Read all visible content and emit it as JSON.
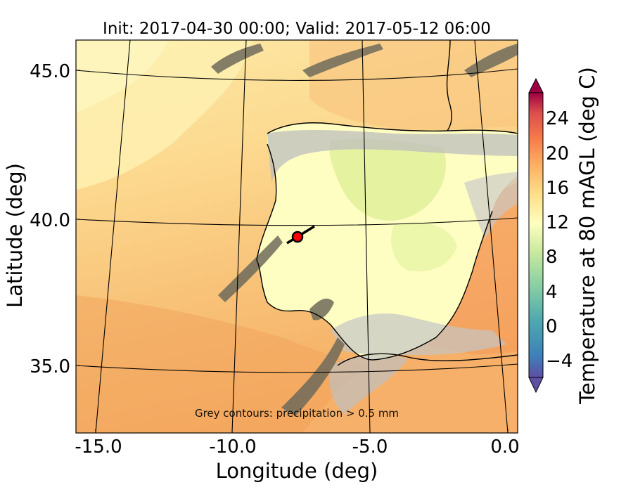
{
  "title": "Init: 2017-04-30 00:00; Valid: 2017-05-12 06:00",
  "xlabel": "Longitude (deg)",
  "ylabel": "Latitude (deg)",
  "annotation": "Grey contours: precipitation  > 0.5 mm",
  "colorbar_label": "Temperature at 80 mAGL (deg C)",
  "colorbar_ticks": [
    "24",
    "20",
    "16",
    "12",
    "8",
    "4",
    "0",
    "−4"
  ],
  "x_ticks": [
    "-15.0",
    "-10.0",
    "-5.0",
    "0.0"
  ],
  "y_ticks": [
    "45.0",
    "40.0",
    "35.0"
  ],
  "marker_color": "#ff0000",
  "colors": {
    "ocean_warm": "#f6b86a",
    "ocean_mid": "#fbd28a",
    "ocean_cool": "#fde8a2",
    "land_cool": "#fefec0",
    "land_green": "#e4f39a",
    "precip": "#b8b8b8",
    "dark_precip": "#6e6a5a"
  }
}
